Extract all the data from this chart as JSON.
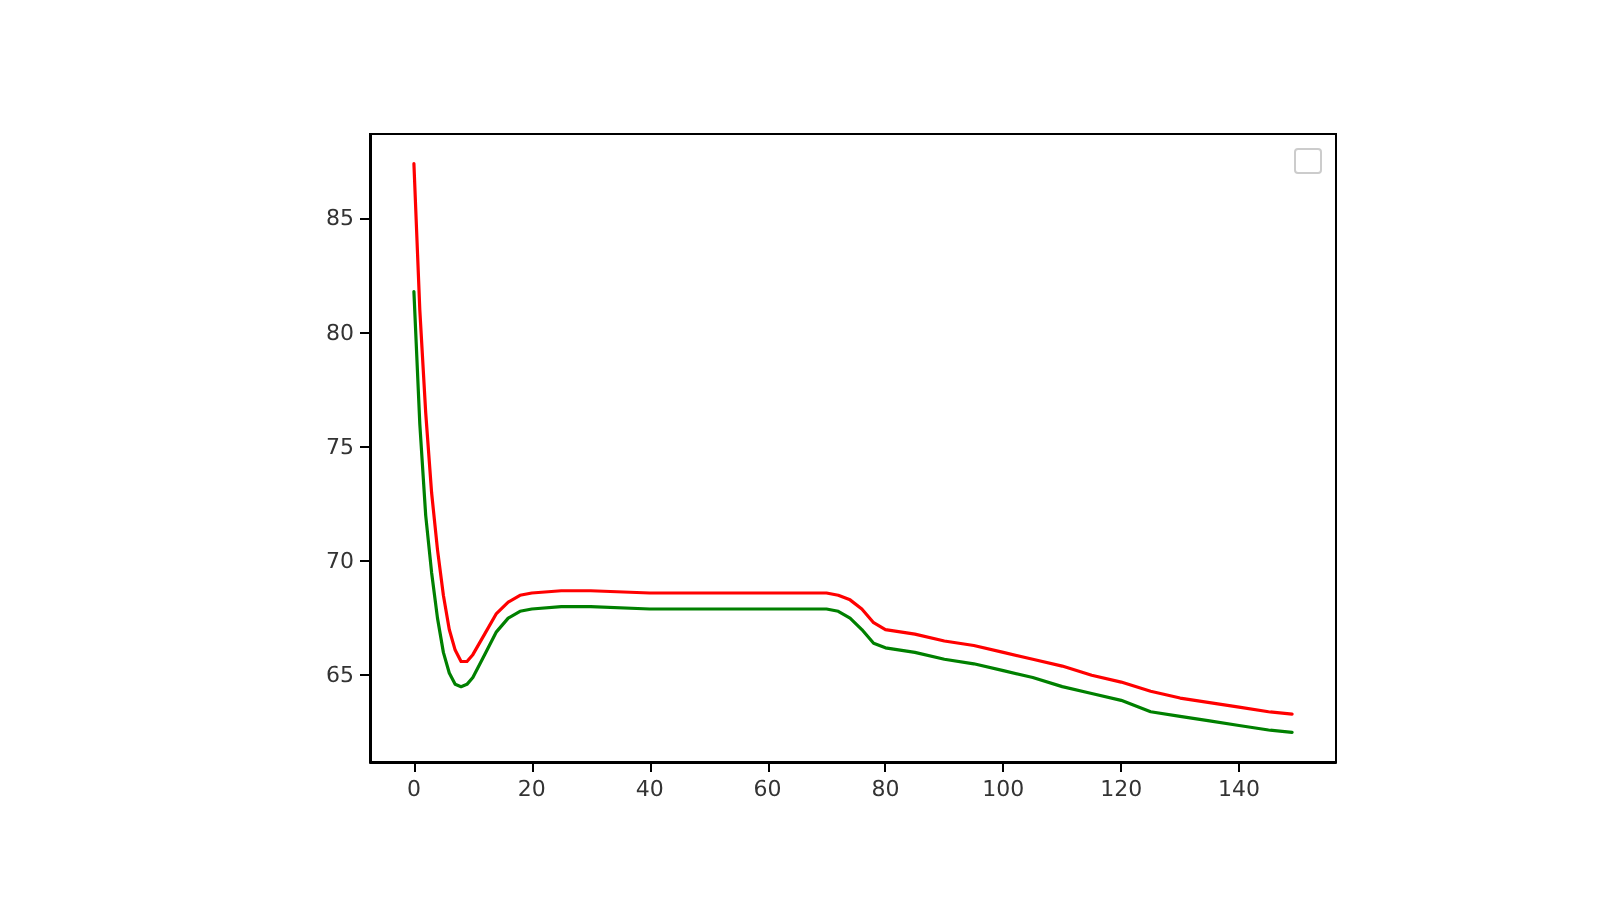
{
  "chart_data": {
    "type": "line",
    "x": [
      0,
      1,
      2,
      3,
      4,
      5,
      6,
      7,
      8,
      9,
      10,
      12,
      14,
      16,
      18,
      20,
      25,
      30,
      40,
      50,
      60,
      65,
      70,
      72,
      74,
      76,
      78,
      80,
      85,
      90,
      95,
      100,
      105,
      110,
      115,
      120,
      125,
      130,
      135,
      140,
      145,
      149
    ],
    "series": [
      {
        "color": "#ff0000",
        "values": [
          87.4,
          81,
          76.5,
          73,
          70.5,
          68.5,
          67,
          66.1,
          65.6,
          65.6,
          65.9,
          66.8,
          67.7,
          68.2,
          68.5,
          68.6,
          68.7,
          68.7,
          68.6,
          68.6,
          68.6,
          68.6,
          68.6,
          68.5,
          68.3,
          67.9,
          67.3,
          67.0,
          66.8,
          66.5,
          66.3,
          66.0,
          65.7,
          65.4,
          65.0,
          64.7,
          64.3,
          64.0,
          63.8,
          63.6,
          63.4,
          63.3
        ]
      },
      {
        "color": "#008000",
        "values": [
          81.8,
          76,
          72,
          69.5,
          67.5,
          66,
          65.1,
          64.6,
          64.5,
          64.6,
          64.9,
          65.9,
          66.9,
          67.5,
          67.8,
          67.9,
          68.0,
          68.0,
          67.9,
          67.9,
          67.9,
          67.9,
          67.9,
          67.8,
          67.5,
          67.0,
          66.4,
          66.2,
          66.0,
          65.7,
          65.5,
          65.2,
          64.9,
          64.5,
          64.2,
          63.9,
          63.4,
          63.2,
          63.0,
          62.8,
          62.6,
          62.5
        ]
      }
    ],
    "xlim": [
      -7.45,
      156.45
    ],
    "xticks": [
      0,
      20,
      40,
      60,
      80,
      100,
      120,
      140
    ],
    "ylim": [
      61.2,
      88.7
    ],
    "yticks": [
      65,
      70,
      75,
      80,
      85
    ],
    "grid": false,
    "marker": "none",
    "line_style": "solid"
  }
}
